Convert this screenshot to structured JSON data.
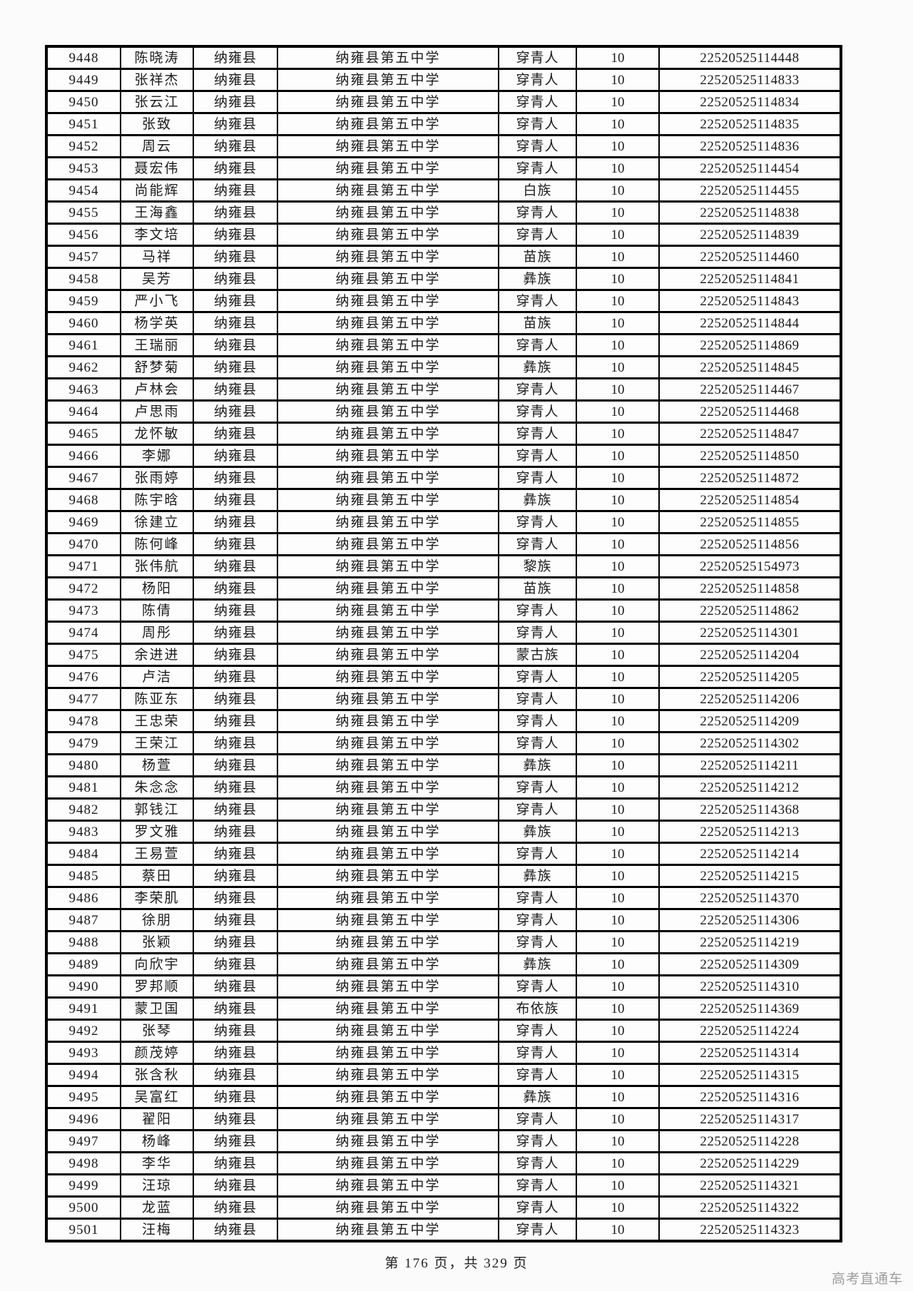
{
  "footer": {
    "text": "第 176 页，共 329 页"
  },
  "watermark": {
    "text": "高考直通车"
  },
  "table": {
    "column_keys": [
      "serial",
      "name",
      "county",
      "school",
      "ethnicity",
      "batch",
      "exam_code"
    ],
    "rows": [
      [
        "9448",
        "陈晓涛",
        "纳雍县",
        "纳雍县第五中学",
        "穿青人",
        "10",
        "22520525114448"
      ],
      [
        "9449",
        "张祥杰",
        "纳雍县",
        "纳雍县第五中学",
        "穿青人",
        "10",
        "22520525114833"
      ],
      [
        "9450",
        "张云江",
        "纳雍县",
        "纳雍县第五中学",
        "穿青人",
        "10",
        "22520525114834"
      ],
      [
        "9451",
        "张致",
        "纳雍县",
        "纳雍县第五中学",
        "穿青人",
        "10",
        "22520525114835"
      ],
      [
        "9452",
        "周云",
        "纳雍县",
        "纳雍县第五中学",
        "穿青人",
        "10",
        "22520525114836"
      ],
      [
        "9453",
        "聂宏伟",
        "纳雍县",
        "纳雍县第五中学",
        "穿青人",
        "10",
        "22520525114454"
      ],
      [
        "9454",
        "尚能辉",
        "纳雍县",
        "纳雍县第五中学",
        "白族",
        "10",
        "22520525114455"
      ],
      [
        "9455",
        "王海鑫",
        "纳雍县",
        "纳雍县第五中学",
        "穿青人",
        "10",
        "22520525114838"
      ],
      [
        "9456",
        "李文培",
        "纳雍县",
        "纳雍县第五中学",
        "穿青人",
        "10",
        "22520525114839"
      ],
      [
        "9457",
        "马祥",
        "纳雍县",
        "纳雍县第五中学",
        "苗族",
        "10",
        "22520525114460"
      ],
      [
        "9458",
        "吴芳",
        "纳雍县",
        "纳雍县第五中学",
        "彝族",
        "10",
        "22520525114841"
      ],
      [
        "9459",
        "严小飞",
        "纳雍县",
        "纳雍县第五中学",
        "穿青人",
        "10",
        "22520525114843"
      ],
      [
        "9460",
        "杨学英",
        "纳雍县",
        "纳雍县第五中学",
        "苗族",
        "10",
        "22520525114844"
      ],
      [
        "9461",
        "王瑞丽",
        "纳雍县",
        "纳雍县第五中学",
        "穿青人",
        "10",
        "22520525114869"
      ],
      [
        "9462",
        "舒梦菊",
        "纳雍县",
        "纳雍县第五中学",
        "彝族",
        "10",
        "22520525114845"
      ],
      [
        "9463",
        "卢林会",
        "纳雍县",
        "纳雍县第五中学",
        "穿青人",
        "10",
        "22520525114467"
      ],
      [
        "9464",
        "卢思雨",
        "纳雍县",
        "纳雍县第五中学",
        "穿青人",
        "10",
        "22520525114468"
      ],
      [
        "9465",
        "龙怀敏",
        "纳雍县",
        "纳雍县第五中学",
        "穿青人",
        "10",
        "22520525114847"
      ],
      [
        "9466",
        "李娜",
        "纳雍县",
        "纳雍县第五中学",
        "穿青人",
        "10",
        "22520525114850"
      ],
      [
        "9467",
        "张雨婷",
        "纳雍县",
        "纳雍县第五中学",
        "穿青人",
        "10",
        "22520525114872"
      ],
      [
        "9468",
        "陈宇晗",
        "纳雍县",
        "纳雍县第五中学",
        "彝族",
        "10",
        "22520525114854"
      ],
      [
        "9469",
        "徐建立",
        "纳雍县",
        "纳雍县第五中学",
        "穿青人",
        "10",
        "22520525114855"
      ],
      [
        "9470",
        "陈何峰",
        "纳雍县",
        "纳雍县第五中学",
        "穿青人",
        "10",
        "22520525114856"
      ],
      [
        "9471",
        "张伟航",
        "纳雍县",
        "纳雍县第五中学",
        "黎族",
        "10",
        "22520525154973"
      ],
      [
        "9472",
        "杨阳",
        "纳雍县",
        "纳雍县第五中学",
        "苗族",
        "10",
        "22520525114858"
      ],
      [
        "9473",
        "陈倩",
        "纳雍县",
        "纳雍县第五中学",
        "穿青人",
        "10",
        "22520525114862"
      ],
      [
        "9474",
        "周彤",
        "纳雍县",
        "纳雍县第五中学",
        "穿青人",
        "10",
        "22520525114301"
      ],
      [
        "9475",
        "余进进",
        "纳雍县",
        "纳雍县第五中学",
        "蒙古族",
        "10",
        "22520525114204"
      ],
      [
        "9476",
        "卢洁",
        "纳雍县",
        "纳雍县第五中学",
        "穿青人",
        "10",
        "22520525114205"
      ],
      [
        "9477",
        "陈亚东",
        "纳雍县",
        "纳雍县第五中学",
        "穿青人",
        "10",
        "22520525114206"
      ],
      [
        "9478",
        "王忠荣",
        "纳雍县",
        "纳雍县第五中学",
        "穿青人",
        "10",
        "22520525114209"
      ],
      [
        "9479",
        "王荣江",
        "纳雍县",
        "纳雍县第五中学",
        "穿青人",
        "10",
        "22520525114302"
      ],
      [
        "9480",
        "杨萱",
        "纳雍县",
        "纳雍县第五中学",
        "彝族",
        "10",
        "22520525114211"
      ],
      [
        "9481",
        "朱念念",
        "纳雍县",
        "纳雍县第五中学",
        "穿青人",
        "10",
        "22520525114212"
      ],
      [
        "9482",
        "郭钱江",
        "纳雍县",
        "纳雍县第五中学",
        "穿青人",
        "10",
        "22520525114368"
      ],
      [
        "9483",
        "罗文雅",
        "纳雍县",
        "纳雍县第五中学",
        "彝族",
        "10",
        "22520525114213"
      ],
      [
        "9484",
        "王易萱",
        "纳雍县",
        "纳雍县第五中学",
        "穿青人",
        "10",
        "22520525114214"
      ],
      [
        "9485",
        "蔡田",
        "纳雍县",
        "纳雍县第五中学",
        "彝族",
        "10",
        "22520525114215"
      ],
      [
        "9486",
        "李荣肌",
        "纳雍县",
        "纳雍县第五中学",
        "穿青人",
        "10",
        "22520525114370"
      ],
      [
        "9487",
        "徐朋",
        "纳雍县",
        "纳雍县第五中学",
        "穿青人",
        "10",
        "22520525114306"
      ],
      [
        "9488",
        "张颖",
        "纳雍县",
        "纳雍县第五中学",
        "穿青人",
        "10",
        "22520525114219"
      ],
      [
        "9489",
        "向欣宇",
        "纳雍县",
        "纳雍县第五中学",
        "彝族",
        "10",
        "22520525114309"
      ],
      [
        "9490",
        "罗邦顺",
        "纳雍县",
        "纳雍县第五中学",
        "穿青人",
        "10",
        "22520525114310"
      ],
      [
        "9491",
        "蒙卫国",
        "纳雍县",
        "纳雍县第五中学",
        "布依族",
        "10",
        "22520525114369"
      ],
      [
        "9492",
        "张琴",
        "纳雍县",
        "纳雍县第五中学",
        "穿青人",
        "10",
        "22520525114224"
      ],
      [
        "9493",
        "颜茂婷",
        "纳雍县",
        "纳雍县第五中学",
        "穿青人",
        "10",
        "22520525114314"
      ],
      [
        "9494",
        "张含秋",
        "纳雍县",
        "纳雍县第五中学",
        "穿青人",
        "10",
        "22520525114315"
      ],
      [
        "9495",
        "吴富红",
        "纳雍县",
        "纳雍县第五中学",
        "彝族",
        "10",
        "22520525114316"
      ],
      [
        "9496",
        "翟阳",
        "纳雍县",
        "纳雍县第五中学",
        "穿青人",
        "10",
        "22520525114317"
      ],
      [
        "9497",
        "杨峰",
        "纳雍县",
        "纳雍县第五中学",
        "穿青人",
        "10",
        "22520525114228"
      ],
      [
        "9498",
        "李华",
        "纳雍县",
        "纳雍县第五中学",
        "穿青人",
        "10",
        "22520525114229"
      ],
      [
        "9499",
        "汪琼",
        "纳雍县",
        "纳雍县第五中学",
        "穿青人",
        "10",
        "22520525114321"
      ],
      [
        "9500",
        "龙蓝",
        "纳雍县",
        "纳雍县第五中学",
        "穿青人",
        "10",
        "22520525114322"
      ],
      [
        "9501",
        "汪梅",
        "纳雍县",
        "纳雍县第五中学",
        "穿青人",
        "10",
        "22520525114323"
      ]
    ]
  }
}
